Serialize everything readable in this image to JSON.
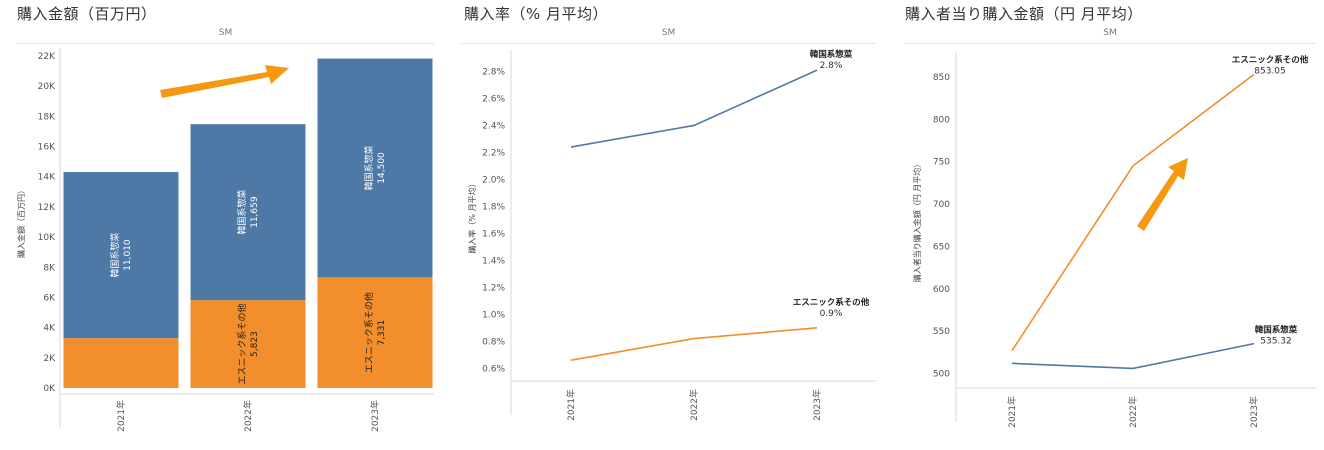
{
  "titles": {
    "p1": "購入金額（百万円）",
    "p2": "購入率（% 月平均）",
    "p3": "購入者当り購入金額（円 月平均）"
  },
  "colors": {
    "blue": "#4e79a7",
    "orange": "#f28e2b",
    "arrow": "#f59a10"
  },
  "chart_data": [
    {
      "type": "bar",
      "stacked": true,
      "header": "SM",
      "ylabel": "購入金額（百万円）",
      "ylim": [
        0,
        22000
      ],
      "yticks": [
        "0K",
        "2K",
        "4K",
        "6K",
        "8K",
        "10K",
        "12K",
        "14K",
        "16K",
        "18K",
        "20K",
        "22K"
      ],
      "categories": [
        "2021年",
        "2022年",
        "2023年"
      ],
      "series": [
        {
          "name": "エスニック系その他",
          "values": [
            3300,
            5823,
            7331
          ],
          "labels": [
            "",
            "5,823",
            "7,331"
          ],
          "color": "#f28e2b"
        },
        {
          "name": "韓国系惣菜",
          "values": [
            11010,
            11659,
            14500
          ],
          "labels": [
            "11,010",
            "11,659",
            "14,500"
          ],
          "color": "#4e79a7"
        }
      ],
      "annotations": [
        "orange-arrow-up-right"
      ]
    },
    {
      "type": "line",
      "header": "SM",
      "ylabel": "購入率（% 月平均）",
      "ylim": [
        0.55,
        2.9
      ],
      "yticks": [
        "0.6%",
        "0.8%",
        "1.0%",
        "1.2%",
        "1.4%",
        "1.6%",
        "1.8%",
        "2.0%",
        "2.2%",
        "2.4%",
        "2.6%",
        "2.8%"
      ],
      "categories": [
        "2021年",
        "2022年",
        "2023年"
      ],
      "series": [
        {
          "name": "韓国系惣菜",
          "values": [
            2.24,
            2.4,
            2.81
          ],
          "end_label": "2.8%",
          "color": "#4e79a7"
        },
        {
          "name": "エスニック系その他",
          "values": [
            0.66,
            0.82,
            0.9
          ],
          "end_label": "0.9%",
          "color": "#f28e2b"
        }
      ]
    },
    {
      "type": "line",
      "header": "SM",
      "ylabel": "購入者当り購入金額（円 月平均）",
      "ylim": [
        490,
        870
      ],
      "yticks": [
        "500",
        "550",
        "600",
        "650",
        "700",
        "750",
        "800",
        "850"
      ],
      "categories": [
        "2021年",
        "2022年",
        "2023年"
      ],
      "series": [
        {
          "name": "エスニック系その他",
          "values": [
            527,
            745,
            853.05
          ],
          "end_label": "853.05",
          "color": "#f28e2b"
        },
        {
          "name": "韓国系惣菜",
          "values": [
            512,
            506,
            535.32
          ],
          "end_label": "535.32",
          "color": "#4e79a7"
        }
      ],
      "annotations": [
        "orange-arrow-up-right"
      ]
    }
  ]
}
